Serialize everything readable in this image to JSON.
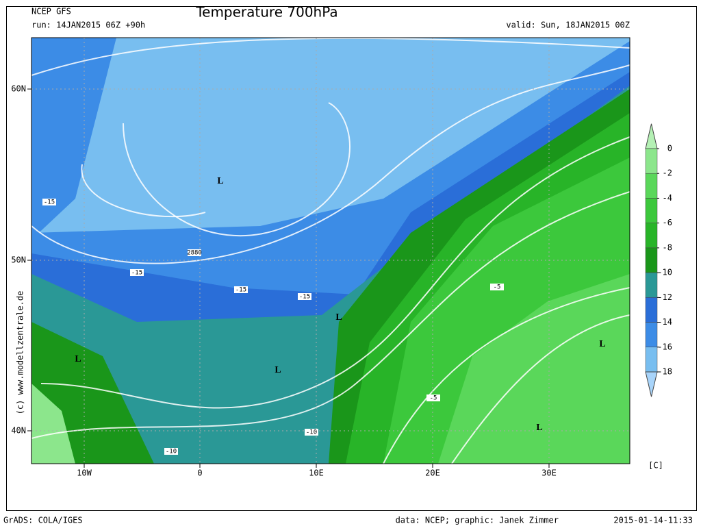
{
  "header": {
    "model": "NCEP GFS",
    "run": "run: 14JAN2015 06Z +90h",
    "title": "Temperature 700hPa",
    "valid": "valid: Sun, 18JAN2015 00Z"
  },
  "axes": {
    "lat_labels": [
      "60N",
      "50N",
      "40N"
    ],
    "lon_labels": [
      "10W",
      "0",
      "10E",
      "20E",
      "30E"
    ]
  },
  "colorbar": {
    "ticks": [
      0,
      -2,
      -4,
      -6,
      -8,
      -10,
      -12,
      -14,
      -16,
      -18
    ],
    "unit": "[C]",
    "colors": [
      "#b4f0b4",
      "#8ce68c",
      "#5ad75a",
      "#3cc83c",
      "#28b428",
      "#1a961a",
      "#2a9896",
      "#2a6ed8",
      "#3c8ce6",
      "#78bef0",
      "#a8d4fa"
    ]
  },
  "map": {
    "contour_labels": [
      "-15",
      "-15",
      "-15",
      "-15",
      "2880",
      "-5",
      "-5",
      "-10",
      "-10"
    ],
    "lows": [
      "L",
      "L",
      "L",
      "L",
      "L",
      "L"
    ]
  },
  "footer": {
    "copyright": "(c) www.modellzentrale.de",
    "software": "GrADS: COLA/IGES",
    "credit": "data: NCEP; graphic: Janek Zimmer",
    "timestamp": "2015-01-14-11:33"
  }
}
